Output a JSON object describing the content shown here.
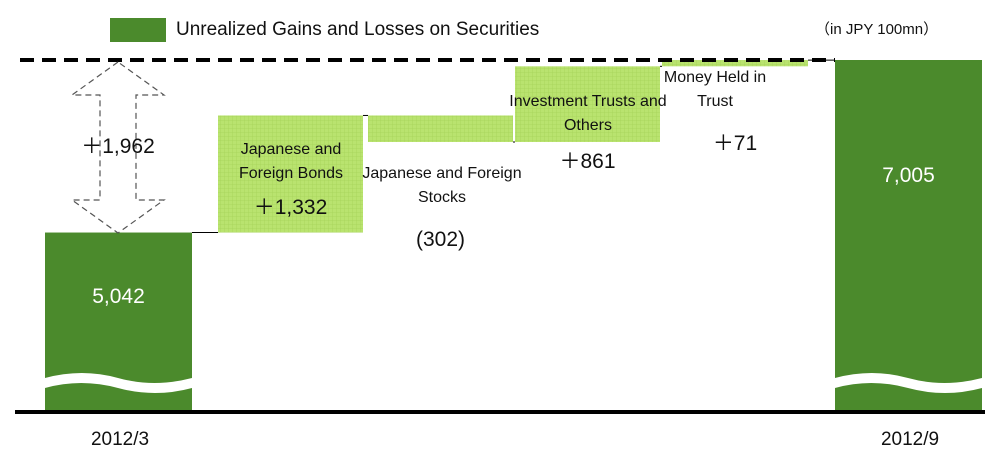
{
  "chart_data": {
    "type": "waterfall",
    "legend_label": "Unrealized Gains and Losses on Securities",
    "unit_label": "（in JPY 100mn）",
    "categories": [
      "2012/3",
      "Japanese and Foreign Bonds",
      "Japanese and Foreign Stocks",
      "Investment Trusts and Others",
      "Money Held in Trust",
      "2012/9"
    ],
    "values": [
      5042,
      1332,
      -302,
      861,
      71,
      7005
    ],
    "value_labels": [
      "5,042",
      "＋1,332",
      "(302)",
      "＋861",
      "＋71",
      "7,005"
    ],
    "annotation": "＋1,962",
    "color": "#4b8a2c",
    "change_color": "#b9e36f",
    "ylim": [
      3000,
      7005
    ]
  }
}
